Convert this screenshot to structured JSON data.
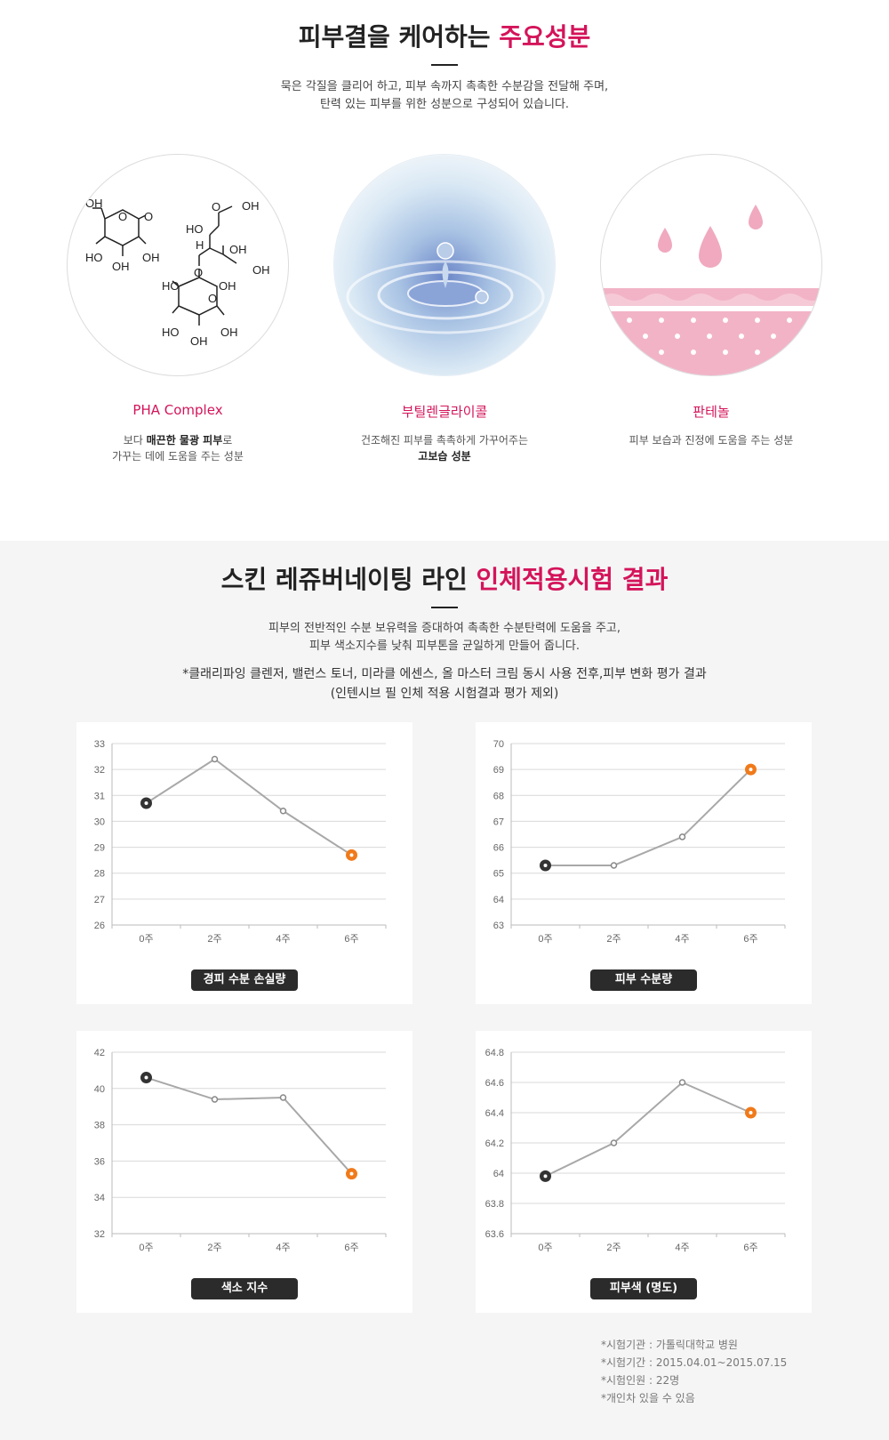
{
  "ingredients_section": {
    "title_main": "피부결을 케어하는 ",
    "title_highlight": "주요성분",
    "lead_line1": "묵은 각질을 클리어 하고, 피부 속까지 촉촉한 수분감을 전달해 주며,",
    "lead_line2": "탄력 있는 피부를 위한 성분으로 구성되어 있습니다.",
    "items": [
      {
        "name": "PHA Complex",
        "desc_a": "보다 ",
        "desc_bold": "매끈한 물광 피부",
        "desc_b": "로",
        "desc_line2": "가꾸는 데에 도움을 주는 성분",
        "image": "molecule-structure",
        "molecule_labels": [
          "OH",
          "O",
          "O",
          "HO",
          "OH",
          "OH",
          "O",
          "OH",
          "HO",
          "H",
          "OH",
          "O",
          "OH",
          "OH",
          "HO",
          "O",
          "HO",
          "OH",
          "OH"
        ]
      },
      {
        "name": "부틸렌글라이콜",
        "desc_line1": "건조해진 피부를 촉촉하게 가꾸어주는",
        "desc_bold": "고보습 성분",
        "image": "water-drop-photo"
      },
      {
        "name": "판테놀",
        "desc_line1": "피부 보습과 진정에 도움을 주는 성분",
        "image": "skin-moisture-illustration"
      }
    ]
  },
  "results_section": {
    "title_main": "스킨 레쥬버네이팅 라인 ",
    "title_highlight": "인체적용시험 결과",
    "lead_line1": "피부의 전반적인 수분 보유력을 증대하여 촉촉한 수분탄력에 도움을 주고,",
    "lead_line2": "피부 색소지수를 낮춰 피부톤을 균일하게 만들어 줍니다.",
    "sub_line1": "*클래리파잉 클렌저, 밸런스 토너, 미라클 에센스, 올 마스터 크림 동시 사용 전후,피부 변화 평가 결과",
    "sub_line2": "(인텐시브 필 인체 적용 시험결과 평가 제외)"
  },
  "chart_data": [
    {
      "type": "line",
      "title": "경피 수분 손실량",
      "categories": [
        "0주",
        "2주",
        "4주",
        "6주"
      ],
      "values": [
        30.7,
        32.4,
        30.4,
        28.7
      ],
      "ylim": [
        26,
        33
      ],
      "yticks": [
        "33",
        "32",
        "31",
        "30",
        "29",
        "28",
        "27",
        "26"
      ],
      "grid": true
    },
    {
      "type": "line",
      "title": "피부 수분량",
      "categories": [
        "0주",
        "2주",
        "4주",
        "6주"
      ],
      "values": [
        65.3,
        65.3,
        66.4,
        69.0
      ],
      "ylim": [
        63,
        70
      ],
      "yticks": [
        "70",
        "69",
        "68",
        "67",
        "66",
        "65",
        "64",
        "63"
      ],
      "grid": true
    },
    {
      "type": "line",
      "title": "색소 지수",
      "categories": [
        "0주",
        "2주",
        "4주",
        "6주"
      ],
      "values": [
        40.6,
        39.4,
        39.5,
        35.3
      ],
      "ylim": [
        32,
        42
      ],
      "yticks": [
        "42",
        "40",
        "38",
        "36",
        "34",
        "32"
      ],
      "grid": true
    },
    {
      "type": "line",
      "title": "피부색 (명도)",
      "categories": [
        "0주",
        "2주",
        "4주",
        "6주"
      ],
      "values": [
        63.98,
        64.2,
        64.6,
        64.4
      ],
      "ylim": [
        63.6,
        64.8
      ],
      "yticks": [
        "64.8",
        "64.6",
        "64.4",
        "64.2",
        "64",
        "63.8",
        "63.6"
      ],
      "grid": true
    }
  ],
  "colors": {
    "accent": "#d4145a",
    "start_point": "#333333",
    "end_point": "#f07a1a",
    "line": "#a8a8a8",
    "grid": "#d9d9d9"
  },
  "notes": [
    "*시험기관 : 가톨릭대학교 병원",
    "*시험기간 : 2015.04.01~2015.07.15",
    "*시험인원 : 22명",
    "*개인차 있을 수 있음"
  ]
}
